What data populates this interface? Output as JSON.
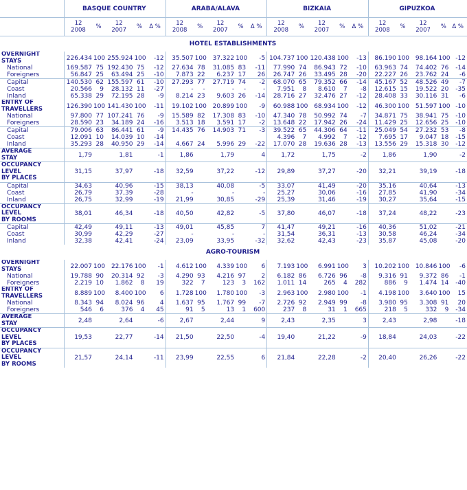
{
  "regions": [
    "BASQUE COUNTRY",
    "ARABA/ALAVA",
    "BIZKAIA",
    "GIPUZKOA"
  ],
  "year_head": {
    "y2008": "12\n2008",
    "y2007": "12\n2007",
    "pct": "%",
    "delta": "Δ %"
  },
  "sections": [
    {
      "title": "HOTEL ESTABLISHMENTS",
      "rows": [
        {
          "label": "OVERNIGHT\nSTAYS",
          "type": "main",
          "vals": [
            "226.434",
            "100",
            "255.924",
            "100",
            "-12",
            "35.507",
            "100",
            "37.322",
            "100",
            "-5",
            "104.737",
            "100",
            "120.438",
            "100",
            "-13",
            "86.190",
            "100",
            "98.164",
            "100",
            "-12"
          ]
        },
        {
          "label": "National",
          "type": "sub",
          "vals": [
            "169.587",
            "75",
            "192.430",
            "75",
            "-12",
            "27.634",
            "78",
            "31.085",
            "83",
            "-11",
            "77.990",
            "74",
            "86.943",
            "72",
            "-10",
            "63.963",
            "74",
            "74.402",
            "76",
            "-14"
          ]
        },
        {
          "label": "Foreigners",
          "type": "sub",
          "vals": [
            "56.847",
            "25",
            "63.494",
            "25",
            "-10",
            "7.873",
            "22",
            "6.237",
            "17",
            "26",
            "26.747",
            "26",
            "33.495",
            "28",
            "-20",
            "22.227",
            "26",
            "23.762",
            "24",
            "-6"
          ]
        },
        {
          "label": "Capital",
          "type": "sub",
          "sep": true,
          "vals": [
            "140.530",
            "62",
            "155.597",
            "61",
            "-10",
            "27.293",
            "77",
            "27.719",
            "74",
            "-2",
            "68.070",
            "65",
            "79.352",
            "66",
            "-14",
            "45.167",
            "52",
            "48.526",
            "49",
            "-7"
          ]
        },
        {
          "label": "Coast",
          "type": "sub",
          "vals": [
            "20.566",
            "9",
            "28.132",
            "11",
            "-27",
            "-",
            "-",
            "-",
            "-",
            "-",
            "7.951",
            "8",
            "8.610",
            "7",
            "-8",
            "12.615",
            "15",
            "19.522",
            "20",
            "-35"
          ]
        },
        {
          "label": "Inland",
          "type": "sub",
          "vals": [
            "65.338",
            "29",
            "72.195",
            "28",
            "-9",
            "8.214",
            "23",
            "9.603",
            "26",
            "-14",
            "28.716",
            "27",
            "32.476",
            "27",
            "-12",
            "28.408",
            "33",
            "30.116",
            "31",
            "-6"
          ]
        },
        {
          "label": "ENTRY OF\nTRAVELLERS",
          "type": "main",
          "vals": [
            "126.390",
            "100",
            "141.430",
            "100",
            "-11",
            "19.102",
            "100",
            "20.899",
            "100",
            "-9",
            "60.988",
            "100",
            "68.934",
            "100",
            "-12",
            "46.300",
            "100",
            "51.597",
            "100",
            "-10"
          ]
        },
        {
          "label": "National",
          "type": "sub",
          "vals": [
            "97.800",
            "77",
            "107.241",
            "76",
            "-9",
            "15.589",
            "82",
            "17.308",
            "83",
            "-10",
            "47.340",
            "78",
            "50.992",
            "74",
            "-7",
            "34.871",
            "75",
            "38.941",
            "75",
            "-10"
          ]
        },
        {
          "label": "Foreigners",
          "type": "sub",
          "vals": [
            "28.590",
            "23",
            "34.189",
            "24",
            "-16",
            "3.513",
            "18",
            "3.591",
            "17",
            "-2",
            "13.648",
            "22",
            "17.942",
            "26",
            "-24",
            "11.429",
            "25",
            "12.656",
            "25",
            "-10"
          ]
        },
        {
          "label": "Capital",
          "type": "sub",
          "sep": true,
          "vals": [
            "79.006",
            "63",
            "86.441",
            "61",
            "-9",
            "14.435",
            "76",
            "14.903",
            "71",
            "-3",
            "39.522",
            "65",
            "44.306",
            "64",
            "-11",
            "25.049",
            "54",
            "27.232",
            "53",
            "-8"
          ]
        },
        {
          "label": "Coast",
          "type": "sub",
          "vals": [
            "12.091",
            "10",
            "14.039",
            "10",
            "-14",
            "",
            "",
            "",
            "",
            "",
            "4.396",
            "7",
            "4.992",
            "7",
            "-12",
            "7.695",
            "17",
            "9.047",
            "18",
            "-15"
          ]
        },
        {
          "label": "Inland",
          "type": "sub",
          "vals": [
            "35.293",
            "28",
            "40.950",
            "29",
            "-14",
            "4.667",
            "24",
            "5.996",
            "29",
            "-22",
            "17.070",
            "28",
            "19.636",
            "28",
            "-13",
            "13.556",
            "29",
            "15.318",
            "30",
            "-12"
          ]
        },
        {
          "label": "AVERAGE\nSTAY",
          "type": "main",
          "sep": true,
          "vals": [
            "1,79",
            "",
            "1,81",
            "",
            "-1",
            "1,86",
            "",
            "1,79",
            "",
            "4",
            "1,72",
            "",
            "1,75",
            "",
            "-2",
            "1,86",
            "",
            "1,90",
            "",
            "-2"
          ]
        },
        {
          "label": "OCCUPANCY\nLEVEL\nBY PLACES",
          "type": "main",
          "sep": true,
          "vals": [
            "31,15",
            "",
            "37,97",
            "",
            "-18",
            "32,59",
            "",
            "37,22",
            "",
            "-12",
            "29,89",
            "",
            "37,27",
            "",
            "-20",
            "32,21",
            "",
            "39,19",
            "",
            "-18"
          ]
        },
        {
          "label": "Capital",
          "type": "sub",
          "sep": true,
          "vals": [
            "34,63",
            "",
            "40,96",
            "",
            "-15",
            "38,13",
            "",
            "40,08",
            "",
            "-5",
            "33,07",
            "",
            "41,49",
            "",
            "-20",
            "35,16",
            "",
            "40,64",
            "",
            "-13"
          ]
        },
        {
          "label": "Coast",
          "type": "sub",
          "vals": [
            "26,79",
            "",
            "37,39",
            "",
            "-28",
            "-",
            "",
            "-",
            "",
            "-",
            "25,27",
            "",
            "30,06",
            "",
            "-16",
            "27,85",
            "",
            "41,90",
            "",
            "-34"
          ]
        },
        {
          "label": "Inland",
          "type": "sub",
          "vals": [
            "26,75",
            "",
            "32,99",
            "",
            "-19",
            "21,99",
            "",
            "30,85",
            "",
            "-29",
            "25,39",
            "",
            "31,46",
            "",
            "-19",
            "30,27",
            "",
            "35,64",
            "",
            "-15"
          ]
        },
        {
          "label": "OCCUPANCY\nLEVEL\nBY ROOMS",
          "type": "main",
          "sep": true,
          "vals": [
            "38,01",
            "",
            "46,34",
            "",
            "-18",
            "40,50",
            "",
            "42,82",
            "",
            "-5",
            "37,80",
            "",
            "46,07",
            "",
            "-18",
            "37,24",
            "",
            "48,22",
            "",
            "-23"
          ]
        },
        {
          "label": "Capital",
          "type": "sub",
          "sep": true,
          "vals": [
            "42,49",
            "",
            "49,11",
            "",
            "-13",
            "49,01",
            "",
            "45,85",
            "",
            "7",
            "41,47",
            "",
            "49,21",
            "",
            "-16",
            "40,36",
            "",
            "51,02",
            "",
            "-21"
          ]
        },
        {
          "label": "Coast",
          "type": "sub",
          "vals": [
            "30,99",
            "",
            "42,29",
            "",
            "-27",
            "-",
            "",
            "-",
            "",
            "-",
            "31,54",
            "",
            "36,31",
            "",
            "-13",
            "30,58",
            "",
            "46,24",
            "",
            "-34"
          ]
        },
        {
          "label": "Inland",
          "type": "sub",
          "vals": [
            "32,38",
            "",
            "42,41",
            "",
            "-24",
            "23,09",
            "",
            "33,95",
            "",
            "-32",
            "32,62",
            "",
            "42,43",
            "",
            "-23",
            "35,87",
            "",
            "45,08",
            "",
            "-20"
          ]
        }
      ]
    },
    {
      "title": "AGRO-TOURISM",
      "rows": [
        {
          "label": "OVERNIGHT\nSTAYS",
          "type": "main",
          "vals": [
            "22.007",
            "100",
            "22.176",
            "100",
            "-1",
            "4.612",
            "100",
            "4.339",
            "100",
            "6",
            "7.193",
            "100",
            "6.991",
            "100",
            "3",
            "10.202",
            "100",
            "10.846",
            "100",
            "-6"
          ]
        },
        {
          "label": "National",
          "type": "sub",
          "vals": [
            "19.788",
            "90",
            "20.314",
            "92",
            "-3",
            "4.290",
            "93",
            "4.216",
            "97",
            "2",
            "6.182",
            "86",
            "6.726",
            "96",
            "-8",
            "9.316",
            "91",
            "9.372",
            "86",
            "-1"
          ]
        },
        {
          "label": "Foreigners",
          "type": "sub",
          "vals": [
            "2.219",
            "10",
            "1.862",
            "8",
            "19",
            "322",
            "7",
            "123",
            "3",
            "162",
            "1.011",
            "14",
            "265",
            "4",
            "282",
            "886",
            "9",
            "1.474",
            "14",
            "-40"
          ]
        },
        {
          "label": "ENTRY OF\nTRAVELLERS",
          "type": "main",
          "vals": [
            "8.889",
            "100",
            "8.400",
            "100",
            "6",
            "1.728",
            "100",
            "1.780",
            "100",
            "-3",
            "2.963",
            "100",
            "2.980",
            "100",
            "-1",
            "4.198",
            "100",
            "3.640",
            "100",
            "15"
          ]
        },
        {
          "label": "National",
          "type": "sub",
          "vals": [
            "8.343",
            "94",
            "8.024",
            "96",
            "4",
            "1.637",
            "95",
            "1.767",
            "99",
            "-7",
            "2.726",
            "92",
            "2.949",
            "99",
            "-8",
            "3.980",
            "95",
            "3.308",
            "91",
            "20"
          ]
        },
        {
          "label": "Foreigners",
          "type": "sub",
          "vals": [
            "546",
            "6",
            "376",
            "4",
            "45",
            "91",
            "5",
            "13",
            "1",
            "600",
            "237",
            "8",
            "31",
            "1",
            "665",
            "218",
            "5",
            "332",
            "9",
            "-34"
          ]
        },
        {
          "label": "AVERAGE\nSTAY",
          "type": "main",
          "sep": true,
          "vals": [
            "2,48",
            "",
            "2,64",
            "",
            "-6",
            "2,67",
            "",
            "2,44",
            "",
            "9",
            "2,43",
            "",
            "2,35",
            "",
            "3",
            "2,43",
            "",
            "2,98",
            "",
            "-18"
          ]
        },
        {
          "label": "OCCUPANCY\nLEVEL\nBY PLACES",
          "type": "main",
          "sep": true,
          "vals": [
            "19,53",
            "",
            "22,77",
            "",
            "-14",
            "21,50",
            "",
            "22,50",
            "",
            "-4",
            "19,40",
            "",
            "21,22",
            "",
            "-9",
            "18,84",
            "",
            "24,03",
            "",
            "-22"
          ]
        },
        {
          "label": "OCCUPANCY\nLEVEL\nBY ROOMS",
          "type": "main",
          "sep": true,
          "vals": [
            "21,57",
            "",
            "24,14",
            "",
            "-11",
            "23,99",
            "",
            "22,55",
            "",
            "6",
            "21,84",
            "",
            "22,28",
            "",
            "-2",
            "20,40",
            "",
            "26,26",
            "",
            "-22"
          ]
        }
      ]
    }
  ]
}
